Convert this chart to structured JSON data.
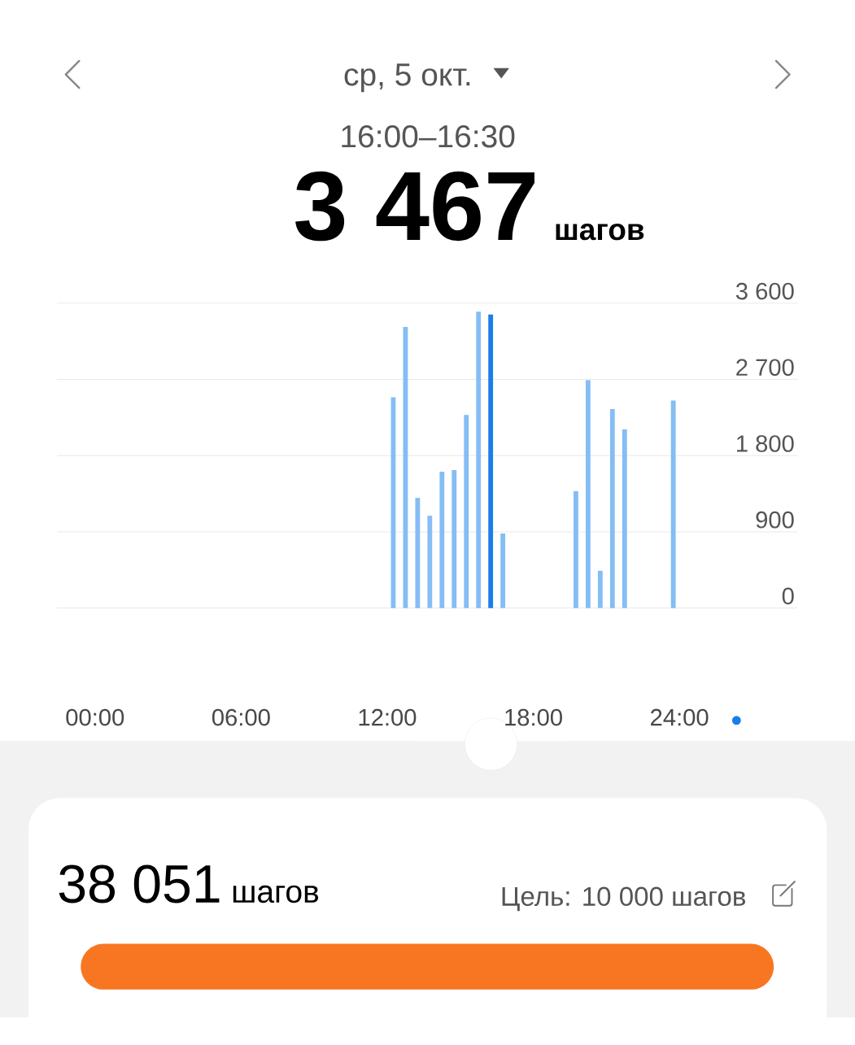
{
  "chart_data": {
    "type": "bar",
    "title": "ср, 5 окт.",
    "subtitle": "16:00–16:30",
    "x": [
      12.25,
      12.75,
      13.25,
      13.75,
      14.25,
      14.75,
      15.25,
      15.75,
      16.25,
      16.75,
      19.75,
      20.25,
      20.75,
      21.25,
      21.75,
      23.75
    ],
    "values": [
      2490,
      3320,
      1300,
      1090,
      1610,
      1630,
      2280,
      3500,
      3467,
      880,
      1380,
      2690,
      440,
      2350,
      2110,
      2450
    ],
    "colors": [
      "#85bdf5",
      "#85bdf5",
      "#85bdf5",
      "#85bdf5",
      "#85bdf5",
      "#85bdf5",
      "#85bdf5",
      "#85bdf5",
      "#1a7ee8",
      "#85bdf5",
      "#85bdf5",
      "#85bdf5",
      "#85bdf5",
      "#85bdf5",
      "#85bdf5",
      "#85bdf5"
    ],
    "xlim": [
      -1.56,
      28.85
    ],
    "ylim": [
      0,
      3600
    ],
    "xticks": [
      {
        "value": 0,
        "label": "00:00"
      },
      {
        "value": 6,
        "label": "06:00"
      },
      {
        "value": 12,
        "label": "12:00"
      },
      {
        "value": 18,
        "label": "18:00"
      },
      {
        "value": 24,
        "label": "24:00"
      }
    ],
    "yticks": [
      {
        "value": 0,
        "label": "0"
      },
      {
        "value": 900,
        "label": "900"
      },
      {
        "value": 1800,
        "label": "1 800"
      },
      {
        "value": 2700,
        "label": "2 700"
      },
      {
        "value": 3600,
        "label": "3 600"
      }
    ],
    "grid": "y",
    "annotations": [
      "3 467",
      "шагов",
      "38 051",
      "шагов",
      "Цель: 10 000 шагов"
    ]
  }
}
